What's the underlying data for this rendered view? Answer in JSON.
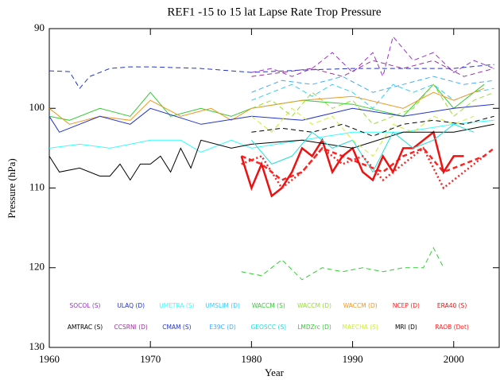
{
  "chart_data": {
    "type": "line",
    "title": "REF1 -15 to 15 lat Lapse Rate Trop Pressure",
    "x_label": "Year",
    "y_label": "Pressure (hPa)",
    "xlim": [
      1960,
      2004.5
    ],
    "xticks": [
      1960,
      1970,
      1980,
      1990,
      2000
    ],
    "ylim": [
      130,
      90
    ],
    "yticks": [
      90,
      100,
      110,
      120,
      130
    ],
    "series": [
      {
        "name": "SOCOL (S)",
        "color": "#9933cc",
        "style": "dashed",
        "x": [
          1980,
          1982,
          1984,
          1986,
          1988,
          1990,
          1992,
          1993,
          1994,
          1996,
          1998,
          2000,
          2002,
          2004
        ],
        "values": [
          95.5,
          95,
          96,
          95,
          93,
          95.5,
          93,
          96,
          91,
          94,
          93,
          95.5,
          94,
          95
        ]
      },
      {
        "name": "ULAQ (D)",
        "color": "#2233cc",
        "style": "dashed",
        "x": [
          1960,
          1962,
          1963,
          1964,
          1966,
          1968,
          1970,
          1975,
          1980,
          1985,
          1990,
          1995,
          2000,
          2004
        ],
        "values": [
          95.3,
          95.4,
          97.5,
          96,
          95,
          94.8,
          94.8,
          95,
          95.5,
          95.2,
          95,
          95,
          95,
          94.5
        ]
      },
      {
        "name": "UMETRA (S)",
        "color": "#33ffff",
        "style": "solid",
        "x": [
          1960,
          1963,
          1966,
          1968,
          1970,
          1973,
          1975,
          1978,
          1980,
          1985,
          1990,
          1995,
          2000,
          2004
        ],
        "values": [
          105,
          104.5,
          105,
          104.5,
          104,
          104,
          105.5,
          104,
          105,
          104,
          103,
          103,
          102,
          101.5
        ]
      },
      {
        "name": "UMSLIM (D)",
        "color": "#33ccff",
        "style": "dashed",
        "x": [
          1980,
          1982,
          1984,
          1986,
          1988,
          1990,
          1992,
          1994,
          1996,
          1998,
          2000,
          2002,
          2004
        ],
        "values": [
          99,
          98,
          97,
          98.5,
          97,
          98,
          100,
          97,
          98,
          97,
          99,
          98,
          97.5
        ]
      },
      {
        "name": "WACCM (S)",
        "color": "#33cc33",
        "style": "solid",
        "x": [
          1960,
          1962,
          1965,
          1968,
          1970,
          1972,
          1975,
          1978,
          1980,
          1985,
          1990,
          1995,
          1998,
          2000,
          2003
        ],
        "values": [
          101,
          101.5,
          100,
          101,
          98,
          101,
          100,
          101,
          100,
          99,
          99.5,
          101,
          97,
          100,
          97
        ]
      },
      {
        "name": "WACCM (D)",
        "color": "#99dd33",
        "style": "dashed",
        "x": [
          1980,
          1982,
          1984,
          1986,
          1988,
          1990,
          1992,
          1994,
          1996,
          1998,
          2000,
          2002,
          2004
        ],
        "values": [
          100,
          99,
          101,
          98,
          100,
          99,
          102,
          101,
          100,
          97,
          101,
          99,
          98
        ]
      },
      {
        "name": "WACCM (D)",
        "color": "#ee9922",
        "style": "solid",
        "x": [
          1960,
          1962,
          1965,
          1968,
          1970,
          1973,
          1976,
          1978,
          1980,
          1985,
          1990,
          1995,
          1998,
          2000,
          2003
        ],
        "values": [
          100,
          102,
          101,
          101.5,
          99,
          101,
          100,
          101.5,
          100,
          99,
          98.5,
          100,
          98,
          99,
          97.5
        ]
      },
      {
        "name": "NCEP (D)",
        "color": "#ff2222",
        "style": "dashed",
        "x": [
          1979,
          1981,
          1983,
          1985,
          1987,
          1989,
          1991,
          1993,
          1995,
          1997,
          1999,
          2001,
          2003,
          2004
        ],
        "values": [
          106,
          107,
          109,
          108,
          105,
          106,
          107,
          108,
          106,
          105,
          108,
          107,
          106,
          105
        ]
      },
      {
        "name": "ERA40 (S)",
        "color": "#ee1111",
        "style": "solid",
        "x": [
          1979,
          1980,
          1981,
          1982,
          1983,
          1984,
          1985,
          1986,
          1987,
          1988,
          1989,
          1990,
          1991,
          1992,
          1993,
          1994,
          1995,
          1996,
          1997,
          1998,
          1999,
          2000,
          2001
        ],
        "values": [
          106,
          110,
          107,
          111,
          110,
          108,
          105,
          106,
          104,
          108,
          106,
          105,
          108,
          109,
          106,
          108,
          105,
          105,
          104,
          103,
          108,
          106,
          106
        ]
      },
      {
        "name": "AMTRAC (S)",
        "color": "#000000",
        "style": "solid",
        "x": [
          1960,
          1961,
          1963,
          1965,
          1966,
          1967,
          1968,
          1969,
          1970,
          1971,
          1972,
          1973,
          1974,
          1975,
          1978,
          1980,
          1985,
          1990,
          1995,
          2000,
          2004
        ],
        "values": [
          106,
          108,
          107.5,
          108.5,
          108.5,
          107,
          109,
          107,
          107,
          106,
          108,
          105,
          107.5,
          104,
          105,
          104.5,
          104,
          105,
          103,
          103,
          102
        ]
      },
      {
        "name": "CCSRNI (D)",
        "color": "#993399",
        "style": "dashed",
        "x": [
          1980,
          1983,
          1986,
          1989,
          1992,
          1995,
          1998,
          2001,
          2004
        ],
        "values": [
          96,
          95.5,
          95,
          96,
          94,
          95,
          94,
          96,
          95
        ]
      },
      {
        "name": "CMAM (S)",
        "color": "#2233cc",
        "style": "solid",
        "x": [
          1960,
          1961,
          1965,
          1968,
          1970,
          1975,
          1980,
          1985,
          1990,
          1995,
          2000,
          2004
        ],
        "values": [
          101,
          103,
          101,
          102,
          100,
          102,
          101,
          101.5,
          100,
          101,
          100,
          99.5
        ]
      },
      {
        "name": "E39C (D)",
        "color": "#44aaff",
        "style": "dashed",
        "x": [
          1980,
          1983,
          1986,
          1989,
          1992,
          1995,
          1998,
          2001,
          2004
        ],
        "values": [
          98,
          96.5,
          97,
          96,
          98,
          97,
          96,
          97,
          96.5
        ]
      },
      {
        "name": "GEOSCC (S)",
        "color": "#22dddd",
        "style": "solid",
        "x": [
          1980,
          1982,
          1984,
          1986,
          1988,
          1990,
          1992,
          1994,
          1996,
          1998,
          2000,
          2002
        ],
        "values": [
          104,
          107,
          106,
          103,
          105,
          104,
          108,
          103,
          105,
          104,
          102,
          103
        ]
      },
      {
        "name": "LMDZrc (D)",
        "color": "#33cc33",
        "style": "dashed",
        "x": [
          1979,
          1981,
          1983,
          1985,
          1987,
          1989,
          1991,
          1993,
          1995,
          1997,
          1998,
          1999
        ],
        "values": [
          120.5,
          121,
          119,
          121.5,
          120,
          120.5,
          120,
          120.5,
          120,
          120,
          117.5,
          120
        ]
      },
      {
        "name": "MAECHA (S)",
        "color": "#ccee33",
        "style": "dashed",
        "x": [
          1980,
          1982,
          1984,
          1986,
          1988,
          1990,
          1992,
          1994,
          1996,
          1998,
          2000,
          2002
        ],
        "values": [
          101,
          103,
          100,
          102,
          101,
          104,
          106,
          102,
          103,
          101,
          102,
          101
        ]
      },
      {
        "name": "MRI (D)",
        "color": "#000000",
        "style": "dashed",
        "x": [
          1980,
          1983,
          1986,
          1989,
          1992,
          1995,
          1998,
          2001,
          2004
        ],
        "values": [
          103,
          102.5,
          103,
          102,
          103.5,
          102,
          101.5,
          102,
          101
        ]
      },
      {
        "name": "RAOB (Dot)",
        "color": "#ff2222",
        "style": "dotted",
        "x": [
          1979,
          1981,
          1983,
          1985,
          1987,
          1989,
          1991,
          1993,
          1995,
          1997,
          1999,
          2001,
          2003
        ],
        "values": [
          107,
          106,
          110,
          108,
          105,
          107,
          106,
          109,
          107,
          105,
          110,
          108,
          106
        ]
      }
    ]
  }
}
